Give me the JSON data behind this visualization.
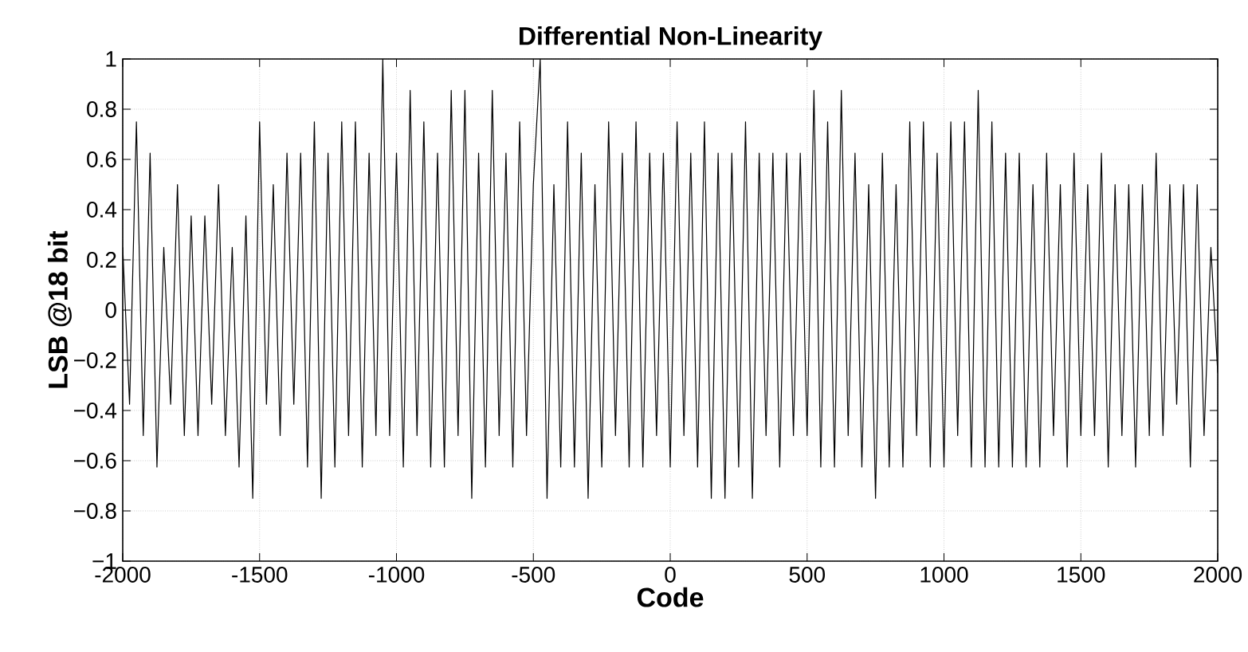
{
  "chart_data": {
    "type": "line",
    "title": "Differential Non-Linearity",
    "xlabel": "Code",
    "ylabel": "LSB @18 bit",
    "x": [
      -2000,
      -1975,
      -1950,
      -1925,
      -1900,
      -1875,
      -1850,
      -1825,
      -1800,
      -1775,
      -1750,
      -1725,
      -1700,
      -1675,
      -1650,
      -1625,
      -1600,
      -1575,
      -1550,
      -1525,
      -1500,
      -1475,
      -1450,
      -1425,
      -1400,
      -1375,
      -1350,
      -1325,
      -1300,
      -1275,
      -1250,
      -1225,
      -1200,
      -1175,
      -1150,
      -1125,
      -1100,
      -1075,
      -1050,
      -1025,
      -1000,
      -975,
      -950,
      -925,
      -900,
      -875,
      -850,
      -825,
      -800,
      -775,
      -750,
      -725,
      -700,
      -675,
      -650,
      -625,
      -600,
      -575,
      -550,
      -525,
      -500,
      -475,
      -450,
      -425,
      -400,
      -375,
      -350,
      -325,
      -300,
      -275,
      -250,
      -225,
      -200,
      -175,
      -150,
      -125,
      -100,
      -75,
      -50,
      -25,
      0,
      25,
      50,
      75,
      100,
      125,
      150,
      175,
      200,
      225,
      250,
      275,
      300,
      325,
      350,
      375,
      400,
      425,
      450,
      475,
      500,
      525,
      550,
      575,
      600,
      625,
      650,
      675,
      700,
      725,
      750,
      775,
      800,
      825,
      850,
      875,
      900,
      925,
      950,
      975,
      1000,
      1025,
      1050,
      1075,
      1100,
      1125,
      1150,
      1175,
      1200,
      1225,
      1250,
      1275,
      1300,
      1325,
      1350,
      1375,
      1400,
      1425,
      1450,
      1475,
      1500,
      1525,
      1550,
      1575,
      1600,
      1625,
      1650,
      1675,
      1700,
      1725,
      1750,
      1775,
      1800,
      1825,
      1850,
      1875,
      1900,
      1925,
      1950,
      1975,
      2000
    ],
    "series": [
      {
        "color": "#000000",
        "values": [
          0.25,
          -0.375,
          0.75,
          -0.5,
          0.625,
          -0.625,
          0.25,
          -0.375,
          0.5,
          -0.5,
          0.375,
          -0.5,
          0.375,
          -0.375,
          0.5,
          -0.5,
          0.25,
          -0.625,
          0.375,
          -0.75,
          0.75,
          -0.375,
          0.5,
          -0.5,
          0.625,
          -0.375,
          0.625,
          -0.625,
          0.75,
          -0.75,
          0.625,
          -0.625,
          0.75,
          -0.5,
          0.75,
          -0.625,
          0.625,
          -0.5,
          1,
          -0.5,
          0.625,
          -0.625,
          0.875,
          -0.5,
          0.75,
          -0.625,
          0.625,
          -0.625,
          0.875,
          -0.5,
          0.875,
          -0.75,
          0.625,
          -0.625,
          0.875,
          -0.5,
          0.625,
          -0.625,
          0.75,
          -0.5,
          0.5,
          1,
          -0.75,
          0.5,
          -0.625,
          0.75,
          -0.625,
          0.625,
          -0.75,
          0.5,
          -0.625,
          0.75,
          -0.5,
          0.625,
          -0.625,
          0.75,
          -0.625,
          0.625,
          -0.5,
          0.625,
          -0.625,
          0.75,
          -0.5,
          0.625,
          -0.625,
          0.75,
          -0.75,
          0.625,
          -0.75,
          0.625,
          -0.625,
          0.75,
          -0.75,
          0.625,
          -0.5,
          0.625,
          -0.625,
          0.625,
          -0.5,
          0.625,
          -0.5,
          0.875,
          -0.625,
          0.75,
          -0.625,
          0.875,
          -0.5,
          0.625,
          -0.625,
          0.5,
          -0.75,
          0.625,
          -0.625,
          0.5,
          -0.625,
          0.75,
          -0.5,
          0.75,
          -0.625,
          0.625,
          -0.625,
          0.75,
          -0.5,
          0.75,
          -0.625,
          0.875,
          -0.625,
          0.75,
          -0.625,
          0.625,
          -0.625,
          0.625,
          -0.625,
          0.5,
          -0.625,
          0.625,
          -0.5,
          0.5,
          -0.625,
          0.625,
          -0.5,
          0.5,
          -0.5,
          0.625,
          -0.625,
          0.5,
          -0.5,
          0.5,
          -0.625,
          0.5,
          -0.5,
          0.625,
          -0.5,
          0.5,
          -0.375,
          0.5,
          -0.625,
          0.5,
          -0.5,
          0.25,
          -0.25
        ]
      }
    ],
    "xlim": [
      -2000,
      2000
    ],
    "ylim": [
      -1,
      1
    ],
    "xticks": [
      -2000,
      -1500,
      -1000,
      -500,
      0,
      500,
      1000,
      1500,
      2000
    ],
    "yticks": [
      {
        "value": -1,
        "label": "−1"
      },
      {
        "value": -0.8,
        "label": "−0.8"
      },
      {
        "value": -0.6,
        "label": "−0.6"
      },
      {
        "value": -0.4,
        "label": "−0.4"
      },
      {
        "value": -0.2,
        "label": "−0.2"
      },
      0,
      0.2,
      0.4,
      0.6,
      0.8,
      1
    ],
    "grid": true
  }
}
